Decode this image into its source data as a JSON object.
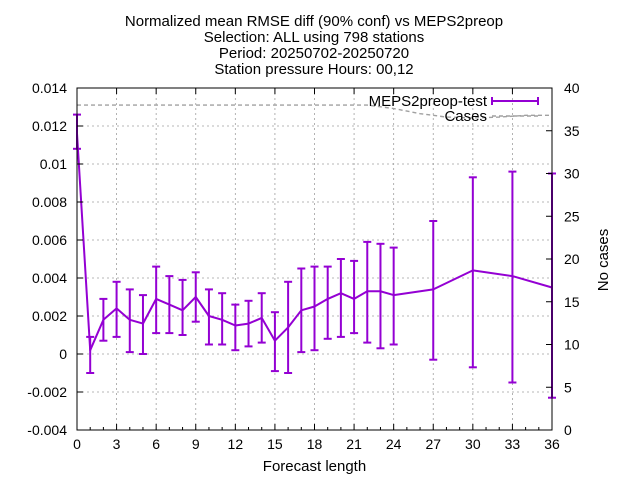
{
  "chart_data": {
    "type": "line",
    "title_lines": [
      "Normalized mean RMSE diff (90% conf) vs MEPS2preop",
      "Selection: ALL using   798 stations",
      "Period: 20250702-20250720",
      "Station pressure   Hours: 00,12"
    ],
    "xlabel": "Forecast length",
    "ylabel": "",
    "y2label": "No cases",
    "xlim": [
      0,
      36
    ],
    "ylim": [
      -0.004,
      0.014
    ],
    "y2lim": [
      0,
      40
    ],
    "xticks": [
      "0",
      "3",
      "6",
      "9",
      "12",
      "15",
      "18",
      "21",
      "24",
      "27",
      "30",
      "33",
      "36"
    ],
    "yticks": [
      "-0.004",
      "-0.002",
      "0",
      "0.002",
      "0.004",
      "0.006",
      "0.008",
      "0.01",
      "0.012",
      "0.014"
    ],
    "y2ticks": [
      "0",
      "5",
      "10",
      "15",
      "20",
      "25",
      "30",
      "35",
      "40"
    ],
    "grid": true,
    "legend_position": "top-right",
    "series": [
      {
        "name": "MEPS2preop-test",
        "color": "#9400d3",
        "x": [
          0,
          1,
          2,
          3,
          4,
          5,
          6,
          7,
          8,
          9,
          10,
          11,
          12,
          13,
          14,
          15,
          16,
          17,
          18,
          19,
          20,
          21,
          22,
          23,
          24,
          27,
          30,
          33,
          36
        ],
        "y": [
          0.0116,
          0.0002,
          0.0018,
          0.0024,
          0.0018,
          0.0016,
          0.0029,
          0.0026,
          0.0023,
          0.003,
          0.002,
          0.0018,
          0.0015,
          0.0016,
          0.0019,
          0.0007,
          0.0014,
          0.0023,
          0.0025,
          0.0029,
          0.0032,
          0.0029,
          0.0033,
          0.0033,
          0.0031,
          0.0034,
          0.0044,
          0.0041,
          0.0035
        ],
        "err_low": [
          0.0108,
          -0.001,
          0.0007,
          0.0009,
          0.0001,
          0.0,
          0.0011,
          0.0011,
          0.001,
          0.0017,
          0.0005,
          0.0005,
          0.0002,
          0.0004,
          0.0006,
          -0.0009,
          -0.001,
          0.0001,
          0.0002,
          0.0008,
          0.0009,
          0.0011,
          0.0006,
          0.0003,
          0.0005,
          -0.0003,
          -0.0007,
          -0.0015,
          -0.0023
        ],
        "err_high": [
          0.0126,
          0.0009,
          0.0029,
          0.0038,
          0.0034,
          0.0031,
          0.0046,
          0.0041,
          0.0039,
          0.0043,
          0.0034,
          0.0032,
          0.0026,
          0.0028,
          0.0032,
          0.0022,
          0.0038,
          0.0045,
          0.0046,
          0.0046,
          0.005,
          0.0049,
          0.0059,
          0.0058,
          0.0056,
          0.007,
          0.0093,
          0.0096,
          0.0095
        ]
      },
      {
        "name": "Cases",
        "color": "#a0a0a0",
        "axis": "y2",
        "x": [
          0,
          20,
          22,
          24,
          26,
          28,
          30,
          32,
          34,
          36
        ],
        "y": [
          38,
          38,
          38,
          37.6,
          37,
          36.6,
          36.5,
          36.6,
          36.8,
          36.8
        ]
      }
    ]
  }
}
